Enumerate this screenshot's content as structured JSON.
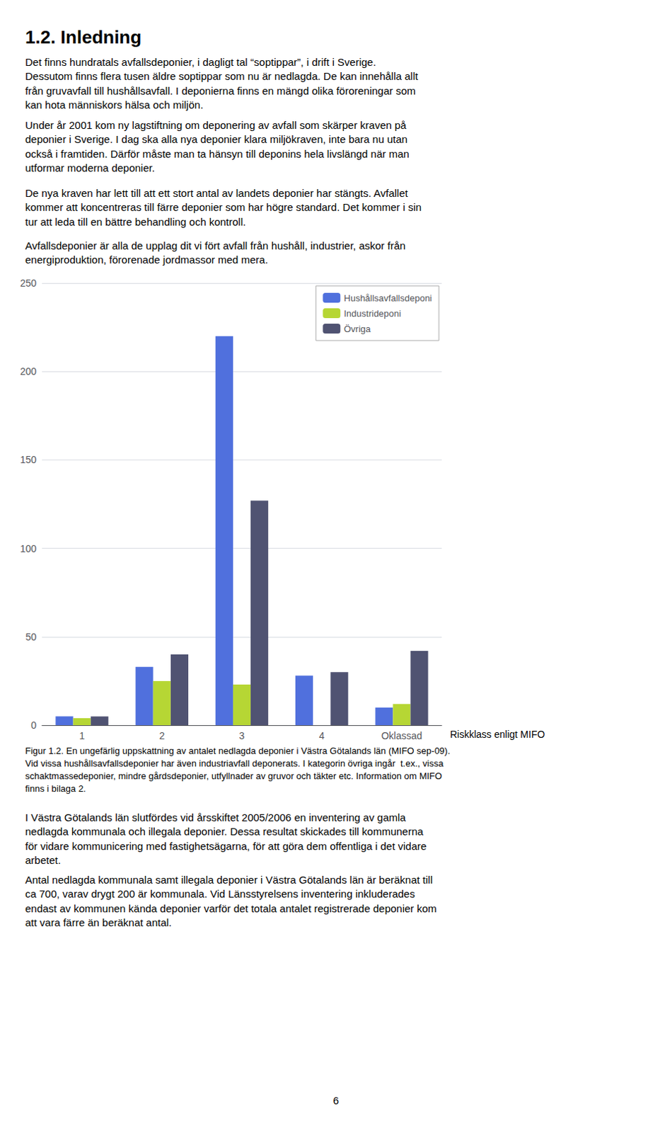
{
  "chart_data": {
    "type": "bar",
    "title": "1.2. Inledning",
    "xlabel": "Riskklass enligt MIFO",
    "categories": [
      "1",
      "2",
      "3",
      "4",
      "Oklassad"
    ],
    "series": [
      {
        "name": "Hushållsavfallsdeponi",
        "values": [
          5,
          33,
          220,
          28,
          10
        ]
      },
      {
        "name": "Industrideponi",
        "values": [
          4,
          25,
          23,
          0,
          12
        ]
      },
      {
        "name": "Övriga",
        "values": [
          5,
          40,
          127,
          30,
          42
        ]
      }
    ],
    "ylim": [
      0,
      250
    ],
    "yticks": [
      0,
      50,
      100,
      150,
      200,
      250
    ],
    "grid": true,
    "legend": "upper right",
    "annotations": [
      "Det finns hundratals avfallsdeponier, i dagligt tal “soptippar”, i drift i Sverige.\nDessutom finns flera tusen äldre soptippar som nu är nedlagda. De kan innehålla allt\nfrån gruvavfall till hushållsavfall. I deponierna finns en mängd olika föroreningar som\nkan hota människors hälsa och miljön.",
      "Under år 2001 kom ny lagstiftning om deponering av avfall som skärper kraven på\ndeponier i Sverige. I dag ska alla nya deponier klara miljökraven, inte bara nu utan\nockså i framtiden. Därför måste man ta hänsyn till deponins hela livslängd när man\nutformar moderna deponier.",
      "De nya kraven har lett till att ett stort antal av landets deponier har stängts. Avfallet\nkommer att koncentreras till färre deponier som har högre standard. Det kommer i sin\ntur att leda till en bättre behandling och kontroll.",
      "Avfallsdeponier är alla de upplag dit vi fört avfall från hushåll, industrier, askor från\nenergiproduktion, förorenade jordmassor med mera.",
      "Figur 1.2. En ungefärlig uppskattning av antalet nedlagda deponier i Västra Götalands län (MIFO sep-09).\nVid vissa hushållsavfallsdeponier har även industriavfall deponerats. I kategorin övriga ingår  t.ex., vissa\nschaktmassedeponier, mindre gårdsdeponier, utfyllnader av gruvor och täkter etc. Information om MIFO\nfinns i bilaga 2.",
      "I Västra Götalands län slutfördes vid årsskiftet 2005/2006 en inventering av gamla\nnedlagda kommunala och illegala deponier. Dessa resultat skickades till kommunerna\nför vidare kommunicering med fastighetsägarna, för att göra dem offentliga i det vidare\narbetet.",
      "Antal nedlagda kommunala samt illegala deponier i Västra Götalands län är beräknat till\nca 700, varav drygt 200 är kommunala. Vid Länsstyrelsens inventering inkluderades\nendast av kommunen kända deponier varför det totala antalet registrerade deponier kom\natt vara färre än beräknat antal.",
      "6"
    ]
  }
}
